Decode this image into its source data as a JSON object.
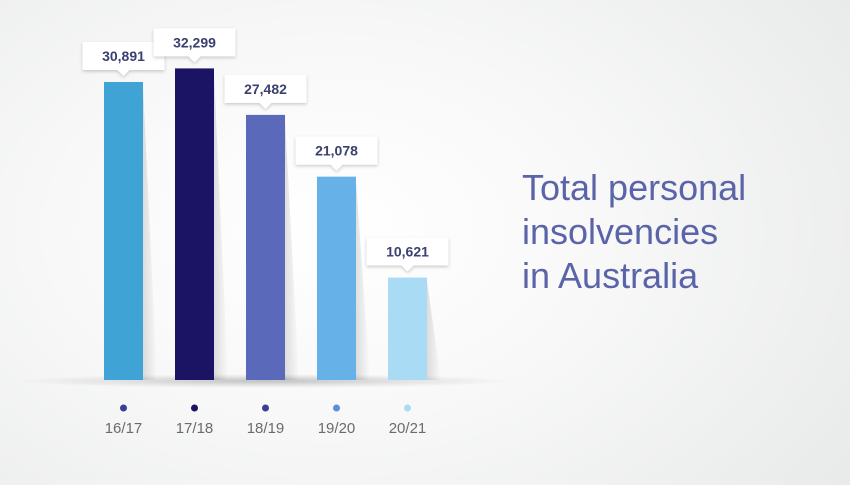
{
  "chart_data": {
    "type": "bar",
    "title": "Total personal\ninsolvencies\nin Australia",
    "categories": [
      "16/17",
      "17/18",
      "18/19",
      "19/20",
      "20/21"
    ],
    "values": [
      30891,
      32299,
      27482,
      21078,
      10621
    ],
    "value_labels": [
      "30,891",
      "32,299",
      "27,482",
      "21,078",
      "10,621"
    ],
    "bar_colors": [
      "#3fa3d6",
      "#1b1464",
      "#5b69ba",
      "#66b2e8",
      "#a9dcf4"
    ],
    "dot_colors": [
      "#3a3f96",
      "#1b1464",
      "#3a3f96",
      "#5b8fd8",
      "#a9dcf4"
    ],
    "ylim": [
      0,
      34000
    ],
    "xlabel": "",
    "ylabel": "",
    "grid": false,
    "legend": "none"
  },
  "colors": {
    "title": "#5b63a9",
    "value_label": "#3a4170",
    "tick_label": "#6b6b6b"
  }
}
